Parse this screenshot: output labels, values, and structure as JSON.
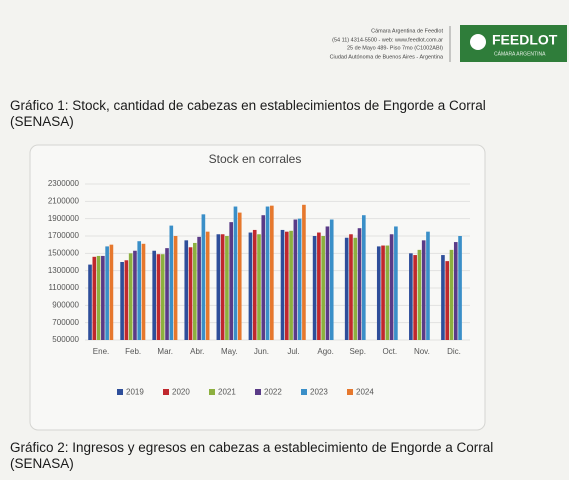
{
  "header": {
    "org": "Cámara Argentina de Feedlot",
    "contact": "(54 11) 4314-5500 - web: www.feedlot.com.ar",
    "address": "25 de Mayo 489- Piso 7mo (C1002ABI)",
    "city": "Ciudad Autónoma de Buenos Aires - Argentina",
    "logo_title": "FEEDLOT",
    "logo_subtitle": "CÁMARA ARGENTINA"
  },
  "caption_1": "Gráfico 1: Stock, cantidad de cabezas en establecimientos de Engorde a Corral (SENASA)",
  "chart_data": {
    "type": "bar",
    "title": "Stock en corrales",
    "categories": [
      "Ene.",
      "Feb.",
      "Mar.",
      "Abr.",
      "May.",
      "Jun.",
      "Jul.",
      "Ago.",
      "Sep.",
      "Oct.",
      "Nov.",
      "Dic."
    ],
    "series": [
      {
        "name": "2019",
        "color": "#2e4e9a",
        "values": [
          1370000,
          1400000,
          1530000,
          1650000,
          1720000,
          1740000,
          1770000,
          1700000,
          1680000,
          1580000,
          1500000,
          1480000
        ]
      },
      {
        "name": "2020",
        "color": "#c0282d",
        "values": [
          1460000,
          1420000,
          1490000,
          1570000,
          1720000,
          1770000,
          1750000,
          1740000,
          1720000,
          1590000,
          1480000,
          1410000
        ]
      },
      {
        "name": "2021",
        "color": "#8db03f",
        "values": [
          1470000,
          1500000,
          1490000,
          1620000,
          1700000,
          1720000,
          1760000,
          1700000,
          1680000,
          1590000,
          1540000,
          1540000
        ]
      },
      {
        "name": "2022",
        "color": "#5a3b87",
        "values": [
          1470000,
          1530000,
          1560000,
          1690000,
          1860000,
          1940000,
          1890000,
          1810000,
          1790000,
          1720000,
          1650000,
          1630000
        ]
      },
      {
        "name": "2023",
        "color": "#3a8fc8",
        "values": [
          1580000,
          1640000,
          1820000,
          1950000,
          2040000,
          2040000,
          1900000,
          1890000,
          1940000,
          1810000,
          1750000,
          1700000
        ]
      },
      {
        "name": "2024",
        "color": "#e6782d",
        "values": [
          1600000,
          1610000,
          1700000,
          1750000,
          1970000,
          2050000,
          2060000,
          null,
          null,
          null,
          null,
          null
        ]
      }
    ],
    "ylim": [
      500000,
      2300000
    ],
    "yticks": [
      500000,
      700000,
      900000,
      1100000,
      1300000,
      1500000,
      1700000,
      1900000,
      2100000,
      2300000
    ],
    "grid": true,
    "legend": "bottom"
  },
  "caption_2": "Gráfico 2: Ingresos y egresos en cabezas a establecimiento de Engorde a Corral (SENASA)"
}
